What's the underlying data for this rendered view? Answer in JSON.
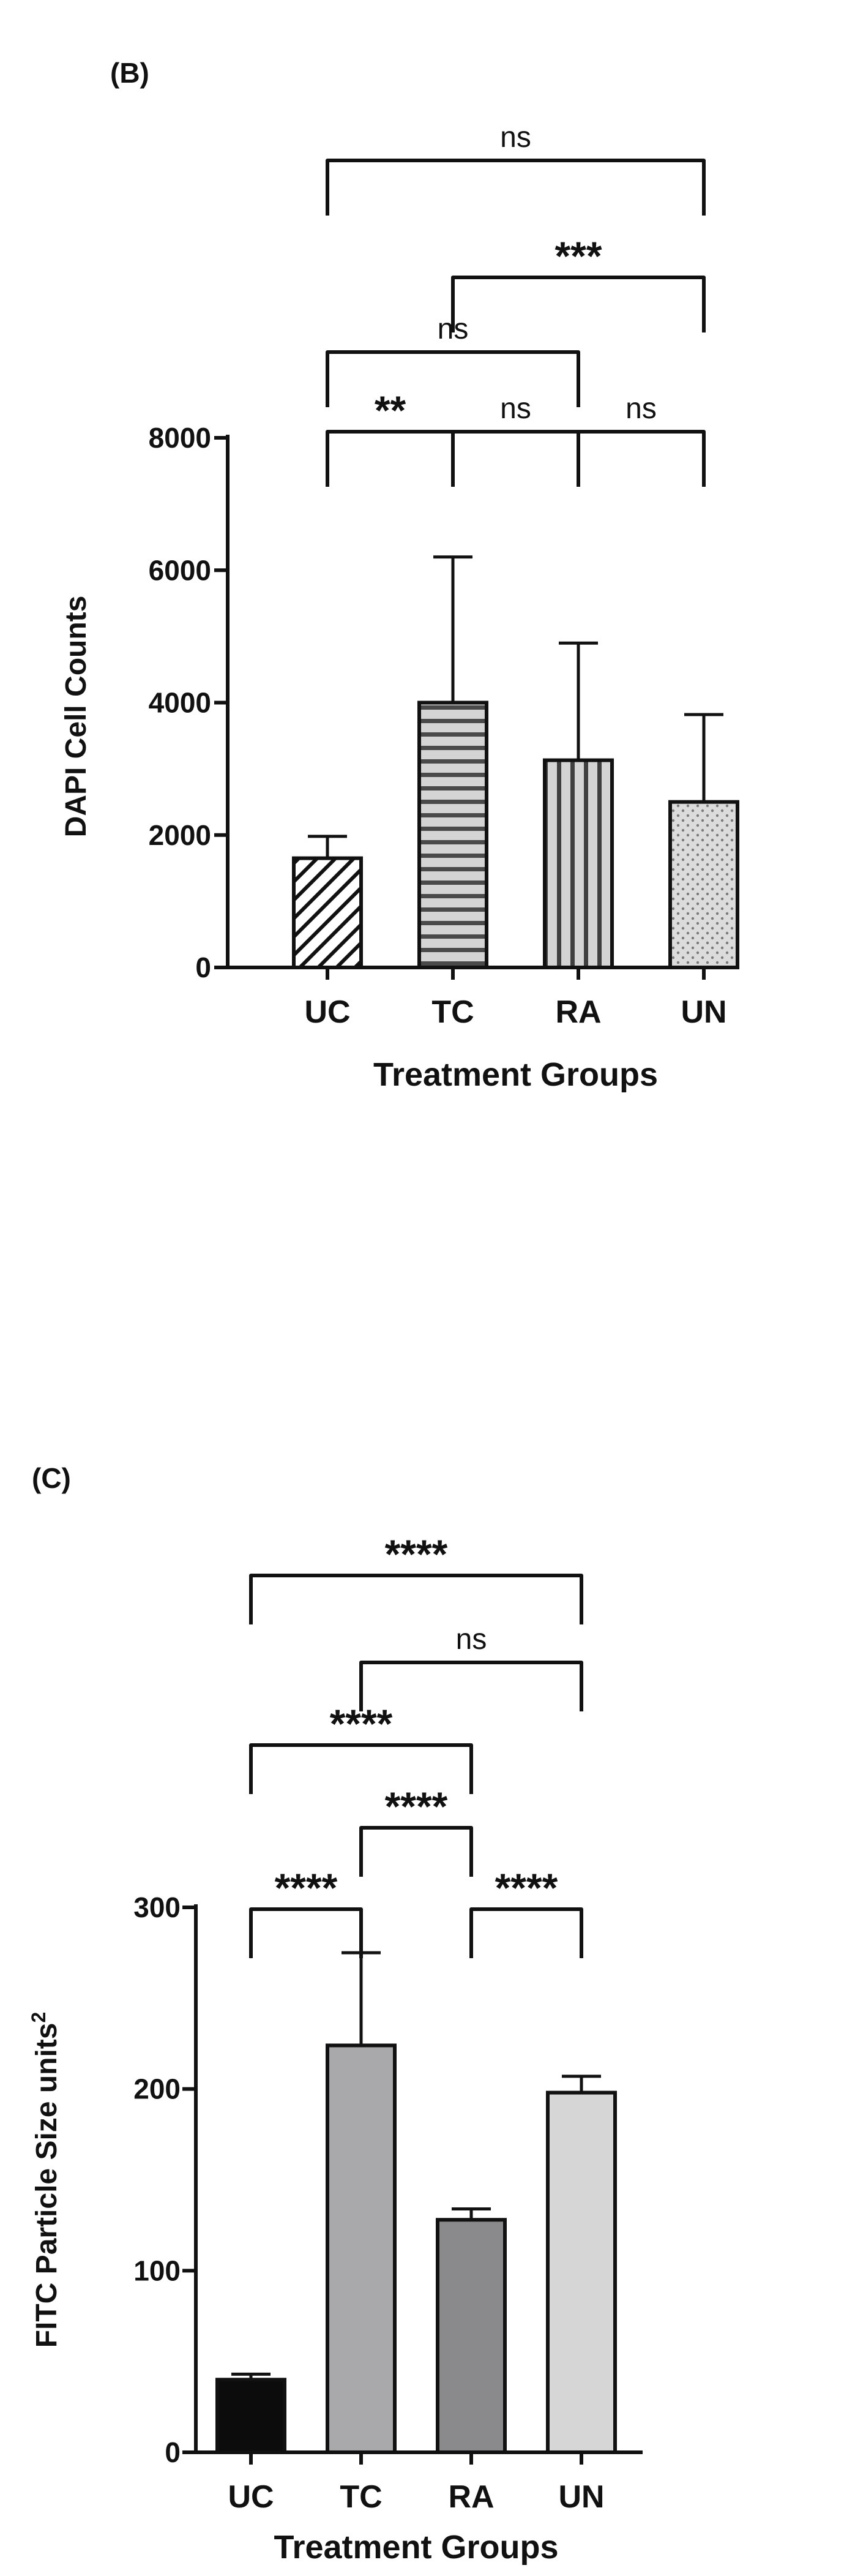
{
  "chart_data": [
    {
      "panel_label": "(B)",
      "type": "bar",
      "categories": [
        "UC",
        "TC",
        "RA",
        "UN"
      ],
      "values": [
        1650,
        4000,
        3130,
        2500
      ],
      "error_upper": [
        1980,
        6200,
        4900,
        3820
      ],
      "patterns": [
        "diagonal",
        "horizontal",
        "vertical",
        "dots"
      ],
      "xlabel": "Treatment Groups",
      "ylabel": "DAPI Cell Counts",
      "ylim": [
        0,
        8000
      ],
      "yticks": [
        0,
        2000,
        4000,
        6000,
        8000
      ],
      "significance": [
        {
          "from": "UC",
          "to": "UN",
          "label": "ns"
        },
        {
          "from": "TC",
          "to": "UN",
          "label": "***"
        },
        {
          "from": "UC",
          "to": "RA",
          "label": "ns"
        },
        {
          "from": "UC",
          "to": "TC",
          "label": "**"
        },
        {
          "from": "TC",
          "to": "RA",
          "label": "ns"
        },
        {
          "from": "RA",
          "to": "UN",
          "label": "ns"
        }
      ]
    },
    {
      "panel_label": "(C)",
      "type": "bar",
      "categories": [
        "UC",
        "TC",
        "RA",
        "UN"
      ],
      "values": [
        40,
        224,
        128,
        198
      ],
      "error_upper": [
        43,
        275,
        134,
        207
      ],
      "fill_colors": [
        "#0c0c0c",
        "#a9a9ab",
        "#8a8a8c",
        "#d6d6d6"
      ],
      "xlabel": "Treatment Groups",
      "ylabel": "FITC Particle Size units",
      "ylabel_superscript": "2",
      "ylim": [
        0,
        300
      ],
      "yticks": [
        0,
        100,
        200,
        300
      ],
      "significance": [
        {
          "from": "UC",
          "to": "UN",
          "label": "****"
        },
        {
          "from": "TC",
          "to": "UN",
          "label": "ns"
        },
        {
          "from": "UC",
          "to": "RA",
          "label": "****"
        },
        {
          "from": "TC",
          "to": "RA",
          "label": "****"
        },
        {
          "from": "UC",
          "to": "TC",
          "label": "****"
        },
        {
          "from": "RA",
          "to": "UN",
          "label": "****"
        }
      ]
    }
  ]
}
